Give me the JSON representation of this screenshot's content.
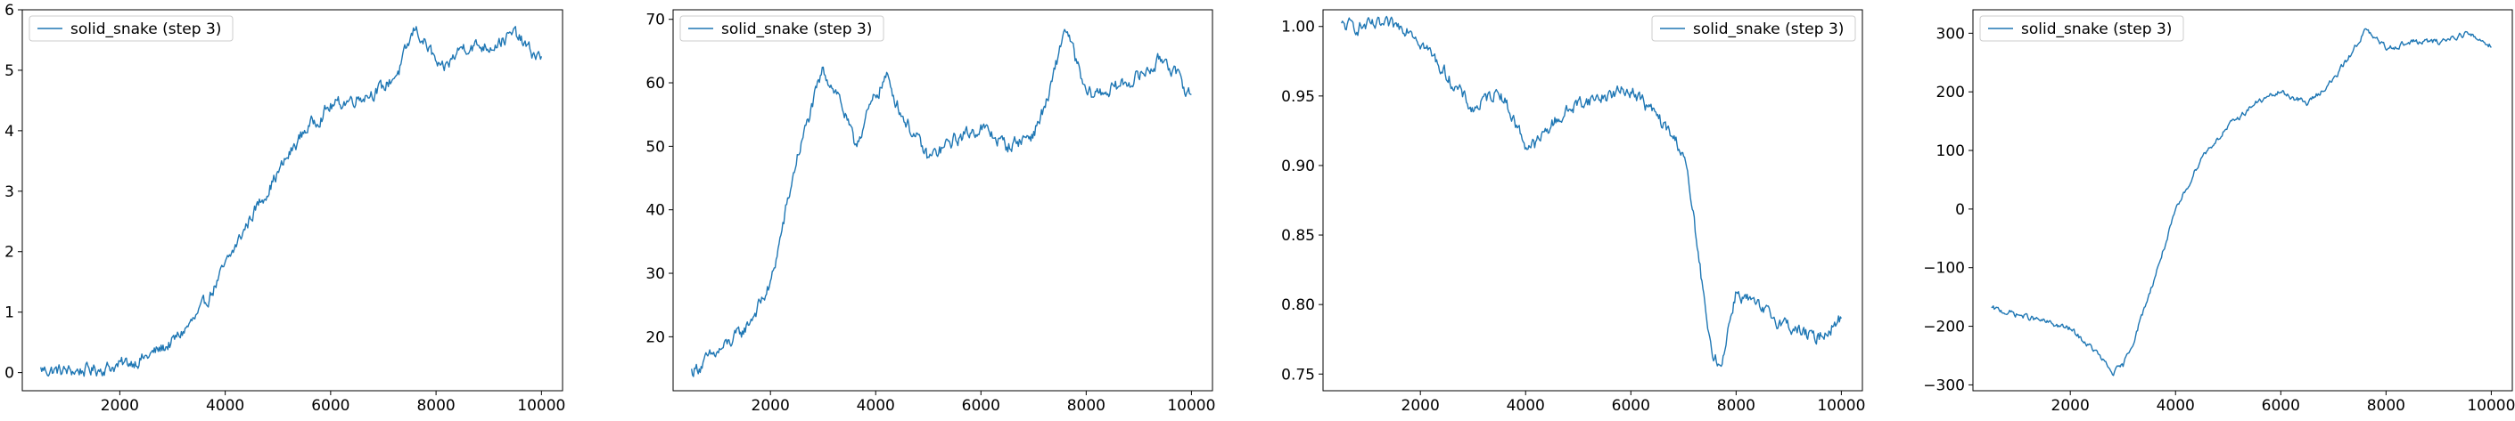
{
  "figure": {
    "line_color": "#1f77b4",
    "background": "#ffffff",
    "frame_color": "#000000"
  },
  "chart_data": [
    {
      "type": "line",
      "title": "",
      "xlabel": "",
      "ylabel": "",
      "legend": {
        "label": "solid_snake (step 3)",
        "placement": "upper-left"
      },
      "xlim": [
        150,
        10400
      ],
      "ylim": [
        -0.3,
        6.0
      ],
      "xticks": [
        2000,
        4000,
        6000,
        8000,
        10000
      ],
      "yticks": [
        0,
        1,
        2,
        3,
        4,
        5,
        6
      ],
      "ytick_labels": [
        "0",
        "1",
        "2",
        "3",
        "4",
        "5",
        "6"
      ],
      "grid": false,
      "series": [
        {
          "name": "solid_snake (step 3)",
          "noise": 0.09,
          "x": [
            500,
            1000,
            1500,
            2000,
            2500,
            3000,
            3500,
            4000,
            4500,
            5000,
            5500,
            6000,
            6500,
            7000,
            7300,
            7600,
            7900,
            8100,
            8500,
            9000,
            9500,
            9800,
            10000
          ],
          "y": [
            0.05,
            0.02,
            0.05,
            0.12,
            0.25,
            0.5,
            0.95,
            1.75,
            2.6,
            3.3,
            4.0,
            4.4,
            4.55,
            4.7,
            5.0,
            5.7,
            5.3,
            4.95,
            5.4,
            5.4,
            5.6,
            5.3,
            5.2
          ]
        }
      ]
    },
    {
      "type": "line",
      "title": "",
      "xlabel": "",
      "ylabel": "",
      "legend": {
        "label": "solid_snake (step 3)",
        "placement": "upper-left"
      },
      "xlim": [
        150,
        10400
      ],
      "ylim": [
        11.5,
        71.5
      ],
      "xticks": [
        2000,
        4000,
        6000,
        8000,
        10000
      ],
      "yticks": [
        20,
        30,
        40,
        50,
        60,
        70
      ],
      "ytick_labels": [
        "20",
        "30",
        "40",
        "50",
        "60",
        "70"
      ],
      "grid": false,
      "series": [
        {
          "name": "solid_snake (step 3)",
          "noise": 0.9,
          "x": [
            500,
            1000,
            1500,
            2000,
            2500,
            3000,
            3300,
            3600,
            4000,
            4200,
            4500,
            5000,
            5500,
            6000,
            6500,
            7000,
            7300,
            7600,
            8000,
            8500,
            9000,
            9500,
            9800,
            10000
          ],
          "y": [
            14.5,
            17.5,
            21,
            28,
            48,
            62,
            58,
            50,
            58,
            61,
            55,
            48,
            51,
            53,
            50,
            52,
            58,
            69,
            58,
            59,
            61,
            64,
            60,
            58
          ]
        }
      ]
    },
    {
      "type": "line",
      "title": "",
      "xlabel": "",
      "ylabel": "",
      "legend": {
        "label": "solid_snake (step 3)",
        "placement": "upper-right"
      },
      "xlim": [
        150,
        10400
      ],
      "ylim": [
        0.738,
        1.012
      ],
      "xticks": [
        2000,
        4000,
        6000,
        8000,
        10000
      ],
      "yticks": [
        0.75,
        0.8,
        0.85,
        0.9,
        0.95,
        1.0
      ],
      "ytick_labels": [
        "0.75",
        "0.80",
        "0.85",
        "0.90",
        "0.95",
        "1.00"
      ],
      "grid": false,
      "series": [
        {
          "name": "solid_snake (step 3)",
          "noise": 0.004,
          "x": [
            500,
            1000,
            1500,
            1800,
            2000,
            2500,
            3000,
            3500,
            4000,
            4200,
            4500,
            5000,
            5500,
            6000,
            6500,
            7000,
            7200,
            7500,
            7700,
            8000,
            8500,
            9000,
            9500,
            10000
          ],
          "y": [
            1.0,
            1.0,
            1.0,
            1.0,
            0.99,
            0.965,
            0.94,
            0.955,
            0.915,
            0.915,
            0.93,
            0.945,
            0.95,
            0.955,
            0.935,
            0.91,
            0.86,
            0.77,
            0.755,
            0.81,
            0.795,
            0.785,
            0.775,
            0.79
          ]
        }
      ]
    },
    {
      "type": "line",
      "title": "",
      "xlabel": "",
      "ylabel": "",
      "legend": {
        "label": "solid_snake (step 3)",
        "placement": "upper-left"
      },
      "xlim": [
        150,
        10400
      ],
      "ylim": [
        -310,
        340
      ],
      "xticks": [
        2000,
        4000,
        6000,
        8000,
        10000
      ],
      "yticks": [
        -300,
        -200,
        -100,
        0,
        100,
        200,
        300
      ],
      "ytick_labels": [
        "−300",
        "−200",
        "−100",
        "0",
        "100",
        "200",
        "300"
      ],
      "grid": false,
      "series": [
        {
          "name": "solid_snake (step 3)",
          "noise": 4,
          "x": [
            500,
            1000,
            1500,
            2000,
            2500,
            2800,
            3000,
            3200,
            3500,
            4000,
            4500,
            5000,
            5500,
            6000,
            6500,
            7000,
            7300,
            7600,
            8000,
            8500,
            9000,
            9500,
            10000
          ],
          "y": [
            -170,
            -180,
            -192,
            -205,
            -245,
            -280,
            -268,
            -225,
            -145,
            -5,
            90,
            140,
            180,
            200,
            180,
            220,
            260,
            305,
            275,
            285,
            285,
            300,
            280
          ]
        }
      ]
    }
  ]
}
